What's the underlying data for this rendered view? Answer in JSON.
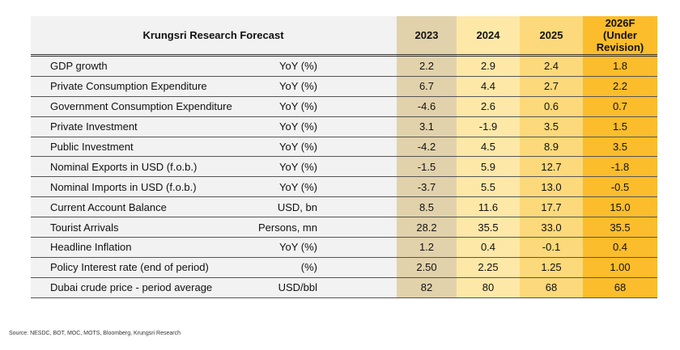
{
  "header": {
    "title": "Krungsri Research Forecast",
    "years": [
      "2023",
      "2024",
      "2025",
      "2026F"
    ],
    "forecast_note": "(Under Revision)"
  },
  "rows": [
    {
      "label": "GDP growth",
      "unit": "YoY (%)",
      "values": [
        "2.2",
        "2.9",
        "2.4",
        "1.8"
      ]
    },
    {
      "label": "Private Consumption Expenditure",
      "unit": "YoY (%)",
      "values": [
        "6.7",
        "4.4",
        "2.7",
        "2.2"
      ]
    },
    {
      "label": "Government Consumption Expenditure",
      "unit": "YoY (%)",
      "values": [
        "-4.6",
        "2.6",
        "0.6",
        "0.7"
      ]
    },
    {
      "label": "Private Investment",
      "unit": "YoY (%)",
      "values": [
        "3.1",
        "-1.9",
        "3.5",
        "1.5"
      ]
    },
    {
      "label": "Public Investment",
      "unit": "YoY (%)",
      "values": [
        "-4.2",
        "4.5",
        "8.9",
        "3.5"
      ]
    },
    {
      "label": "Nominal Exports in USD (f.o.b.)",
      "unit": "YoY (%)",
      "values": [
        "-1.5",
        "5.9",
        "12.7",
        "-1.8"
      ]
    },
    {
      "label": "Nominal Imports in USD (f.o.b.)",
      "unit": "YoY (%)",
      "values": [
        "-3.7",
        "5.5",
        "13.0",
        "-0.5"
      ]
    },
    {
      "label": "Current Account Balance",
      "unit": "USD, bn",
      "values": [
        "8.5",
        "11.6",
        "17.7",
        "15.0"
      ]
    },
    {
      "label": "Tourist Arrivals",
      "unit": "Persons, mn",
      "values": [
        "28.2",
        "35.5",
        "33.0",
        "35.5"
      ]
    },
    {
      "label": "Headline Inflation",
      "unit": "YoY (%)",
      "values": [
        "1.2",
        "0.4",
        "-0.1",
        "0.4"
      ]
    },
    {
      "label": "Policy Interest rate (end of period)",
      "unit": "(%)",
      "values": [
        "2.50",
        "2.25",
        "1.25",
        "1.00"
      ]
    },
    {
      "label": "Dubai crude price - period average",
      "unit": "USD/bbl",
      "values": [
        "82",
        "80",
        "68",
        "68"
      ]
    }
  ],
  "source": "Source: NESDC, BOT, MOC, MOTS, Bloomberg, Krungsri Research",
  "colors": {
    "2023": "#e2d2ab",
    "2024": "#fde8a8",
    "2025": "#fcd97a",
    "2026F": "#fbbd2b",
    "label_bg": "#f2f2f2"
  }
}
